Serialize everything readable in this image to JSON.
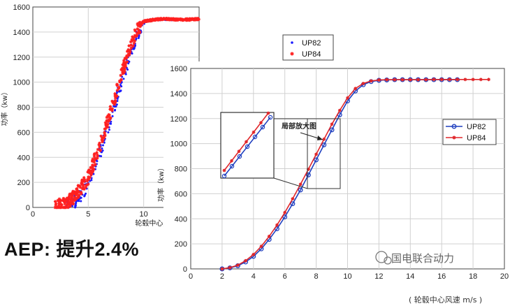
{
  "headline": "AEP: 提升2.4%",
  "watermark": "国电联合动力",
  "bottom_caption": "( 轮毂中心风速 m/s )",
  "colors": {
    "up82": "#1a1aff",
    "up84": "#ff2020",
    "up82_curve": "#1f3fbf",
    "up84_curve": "#e0262a"
  },
  "chart_data": [
    {
      "type": "scatter",
      "ylabel": "功率（kw）",
      "xlabel": "轮毂中心风",
      "xlim": [
        0,
        15
      ],
      "ylim": [
        0,
        1600
      ],
      "xticks": [
        "0",
        "5",
        "10"
      ],
      "yticks": [
        "0",
        "200",
        "400",
        "600",
        "800",
        "1000",
        "1200",
        "1400",
        "1600"
      ],
      "legend_position": "top-right",
      "series": [
        {
          "name": "UP82",
          "marker": "dot",
          "color": "#1a1aff",
          "x": [
            3,
            4,
            5,
            5.5,
            6,
            6.5,
            7,
            7.5,
            8,
            8.5,
            9,
            9.5,
            10,
            10.5,
            11,
            12,
            13
          ],
          "y": [
            10,
            60,
            190,
            300,
            420,
            560,
            700,
            850,
            1000,
            1140,
            1280,
            1400,
            1470,
            1495,
            1500,
            1500,
            1500
          ]
        },
        {
          "name": "UP84",
          "marker": "star",
          "color": "#ff2020",
          "x": [
            2,
            3,
            4,
            5,
            5.5,
            6,
            6.5,
            7,
            7.5,
            8,
            8.5,
            9,
            9.5,
            10,
            11,
            12,
            13,
            14,
            15
          ],
          "y": [
            10,
            35,
            110,
            240,
            360,
            480,
            620,
            760,
            910,
            1060,
            1200,
            1330,
            1430,
            1485,
            1500,
            1505,
            1500,
            1500,
            1505
          ]
        }
      ]
    },
    {
      "type": "line",
      "ylabel": "功率（kw）",
      "xlabel": "",
      "xlim": [
        0,
        20
      ],
      "ylim": [
        0,
        1600
      ],
      "xticks": [
        "0",
        "2",
        "4",
        "6",
        "8",
        "10",
        "12",
        "14",
        "16",
        "18",
        "20"
      ],
      "yticks": [
        "0",
        "200",
        "400",
        "600",
        "800",
        "1000",
        "1200",
        "1400",
        "1600"
      ],
      "legend_position": "right",
      "annotation": "局部放大图",
      "series": [
        {
          "name": "UP82",
          "color": "#1f3fbf",
          "x": [
            2,
            2.5,
            3,
            3.5,
            4,
            4.5,
            5,
            5.5,
            6,
            6.5,
            7,
            7.5,
            8,
            8.5,
            9,
            9.5,
            10,
            10.5,
            11,
            11.5,
            12,
            12.5,
            13,
            13.5,
            14,
            14.5,
            15,
            15.5,
            16,
            16.5,
            17
          ],
          "y": [
            0,
            8,
            25,
            55,
            100,
            160,
            235,
            320,
            415,
            520,
            630,
            750,
            870,
            990,
            1110,
            1230,
            1340,
            1420,
            1470,
            1495,
            1505,
            1508,
            1510,
            1510,
            1510,
            1510,
            1510,
            1510,
            1510,
            1510,
            1510
          ]
        },
        {
          "name": "UP84",
          "color": "#e0262a",
          "x": [
            2,
            2.5,
            3,
            3.5,
            4,
            4.5,
            5,
            5.5,
            6,
            6.5,
            7,
            7.5,
            8,
            8.5,
            9,
            9.5,
            10,
            10.5,
            11,
            11.5,
            12,
            12.5,
            13,
            13.5,
            14,
            14.5,
            15,
            15.5,
            16,
            16.5,
            17,
            17.5,
            18,
            18.5,
            19
          ],
          "y": [
            0,
            10,
            30,
            65,
            115,
            180,
            260,
            350,
            450,
            560,
            675,
            795,
            915,
            1035,
            1155,
            1265,
            1365,
            1440,
            1480,
            1500,
            1508,
            1510,
            1510,
            1510,
            1510,
            1510,
            1510,
            1512,
            1512,
            1512,
            1512,
            1512,
            1512,
            1512,
            1512
          ]
        }
      ]
    }
  ]
}
